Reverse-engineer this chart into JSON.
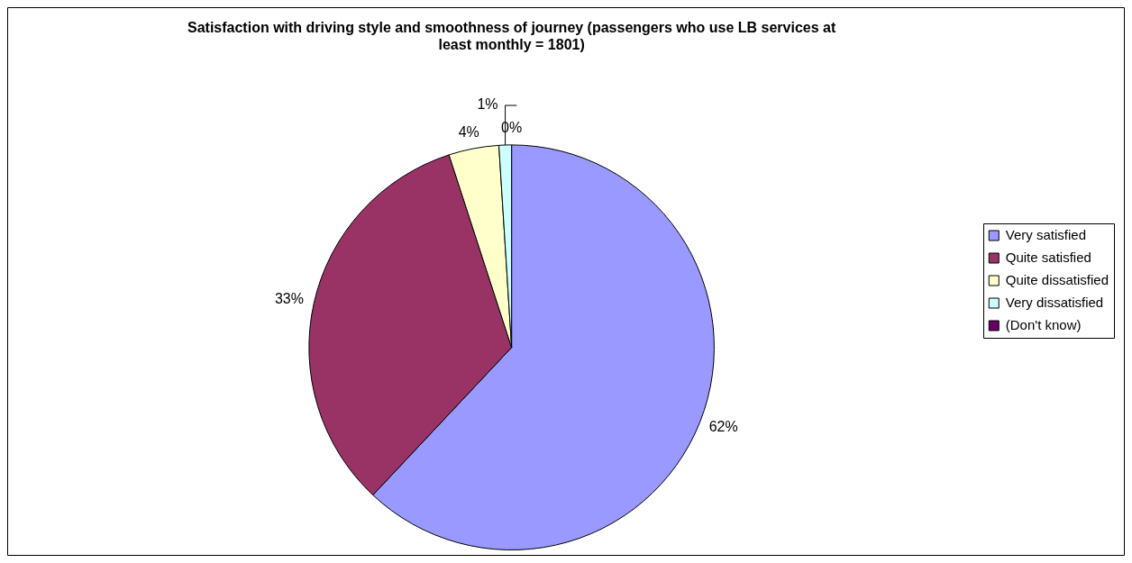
{
  "chart_data": {
    "type": "pie",
    "title": "Satisfaction with driving style and smoothness of journey (passengers who use LB services at least monthly = 1801)",
    "categories": [
      "Very satisfied",
      "Quite satisfied",
      "Quite dissatisfied",
      "Very dissatisfied",
      "(Don't know)"
    ],
    "values": [
      62,
      33,
      4,
      1,
      0
    ],
    "colors": [
      "#9999ff",
      "#993366",
      "#ffffcc",
      "#ccffff",
      "#660066"
    ],
    "value_labels": [
      "62%",
      "33%",
      "4%",
      "1%",
      "0%"
    ],
    "legend": "right"
  }
}
